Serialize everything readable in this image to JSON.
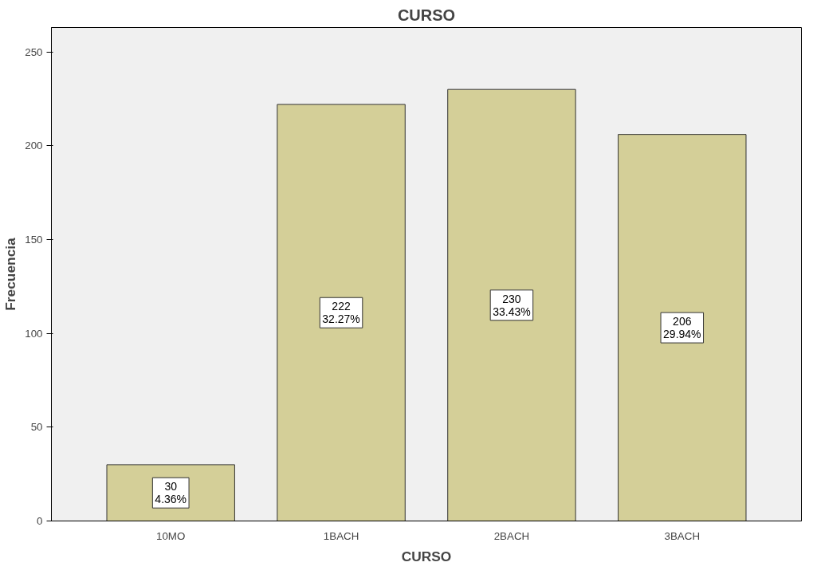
{
  "chart_data": {
    "type": "bar",
    "title": "CURSO",
    "xlabel": "CURSO",
    "ylabel": "Frecuencia",
    "categories": [
      "10MO",
      "1BACH",
      "2BACH",
      "3BACH"
    ],
    "values": [
      30,
      222,
      230,
      206
    ],
    "color": "#d4cf98",
    "value_labels": [
      "30\n4.36%",
      "222\n32.27%",
      "230\n33.43%",
      "206\n29.94%"
    ],
    "ylim": [
      0,
      263
    ],
    "yticks": [
      0,
      50,
      100,
      150,
      200,
      250
    ],
    "grid": false
  }
}
